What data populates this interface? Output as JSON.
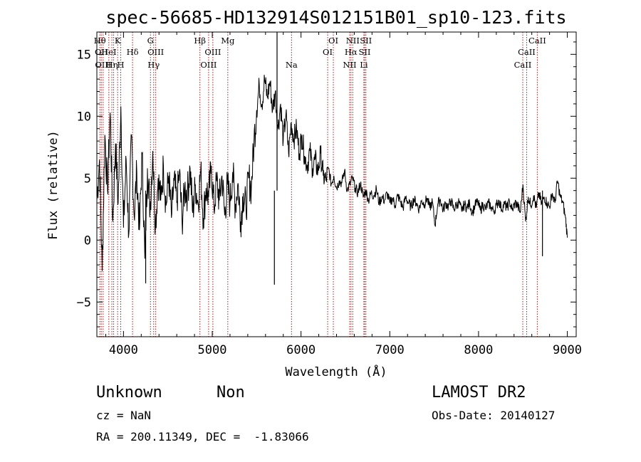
{
  "chart_data": {
    "type": "line",
    "title": "spec-56685-HD132914S012151B01_sp10-123.fits",
    "xlabel": "Wavelength (Å)",
    "ylabel": "Flux (relative)",
    "xlim": [
      3700,
      9100
    ],
    "ylim": [
      -7.8,
      16.8
    ],
    "xticks": [
      4000,
      5000,
      6000,
      7000,
      8000,
      9000
    ],
    "yticks": [
      -5,
      0,
      5,
      10,
      15
    ],
    "grid": false,
    "series": [
      {
        "x": [
          3700,
          3730,
          3760,
          3790,
          3820,
          3850,
          3880,
          3910,
          3940,
          3970,
          4000,
          4030,
          4060,
          4090,
          4120,
          4150,
          4180,
          4210,
          4240,
          4270,
          4300,
          4330,
          4360,
          4390,
          4420,
          4450,
          4480,
          4510,
          4540,
          4570,
          4600,
          4630,
          4660,
          4690,
          4720,
          4750,
          4780,
          4810,
          4840,
          4870,
          4900,
          4930,
          4960,
          4990,
          5020,
          5050,
          5080,
          5110,
          5140,
          5170,
          5200,
          5230,
          5260,
          5290,
          5320,
          5350,
          5380,
          5410,
          5440,
          5470,
          5500,
          5530,
          5560,
          5590,
          5620,
          5650,
          5680,
          5710,
          5740,
          5770,
          5800,
          5830,
          5860,
          5890,
          5920,
          5950,
          5980,
          6010,
          6040,
          6070,
          6100,
          6130,
          6160,
          6190,
          6220,
          6250,
          6280,
          6310,
          6340,
          6370,
          6400,
          6430,
          6460,
          6490,
          6520,
          6550,
          6580,
          6610,
          6640,
          6670,
          6700,
          6730,
          6760,
          6790,
          6820,
          6850,
          6880,
          6910,
          6940,
          6970,
          7000,
          7030,
          7060,
          7090,
          7120,
          7150,
          7180,
          7210,
          7240,
          7270,
          7300,
          7330,
          7360,
          7390,
          7420,
          7450,
          7480,
          7510,
          7540,
          7570,
          7600,
          7630,
          7660,
          7690,
          7720,
          7750,
          7780,
          7810,
          7840,
          7870,
          7900,
          7930,
          7960,
          7990,
          8020,
          8050,
          8080,
          8110,
          8140,
          8170,
          8200,
          8230,
          8260,
          8290,
          8320,
          8350,
          8380,
          8410,
          8440,
          8470,
          8500,
          8530,
          8560,
          8590,
          8620,
          8650,
          8680,
          8710,
          8740,
          8770,
          8800,
          8830,
          8860,
          8890,
          8920,
          8950,
          8980,
          9000
        ],
        "y": [
          3.2,
          6.5,
          -2.5,
          8.5,
          4.0,
          10.3,
          1.5,
          7.8,
          3.0,
          10.8,
          1.0,
          6.5,
          0.5,
          8.5,
          2.0,
          5.5,
          0.8,
          7.0,
          -1.5,
          5.8,
          2.5,
          7.2,
          1.2,
          5.0,
          3.2,
          6.0,
          2.8,
          5.2,
          1.8,
          4.8,
          3.0,
          5.5,
          1.5,
          4.2,
          3.8,
          5.8,
          2.2,
          4.5,
          3.0,
          5.6,
          1.8,
          4.2,
          3.5,
          6.0,
          2.5,
          4.8,
          3.2,
          5.2,
          2.0,
          4.5,
          3.0,
          5.5,
          2.8,
          4.6,
          1.5,
          3.8,
          2.5,
          5.0,
          4.2,
          8.0,
          10.5,
          12.5,
          11.0,
          13.0,
          11.5,
          12.8,
          10.5,
          12.0,
          9.0,
          11.0,
          8.0,
          10.2,
          7.0,
          9.5,
          8.2,
          9.0,
          7.0,
          8.5,
          6.8,
          6.0,
          7.2,
          5.8,
          6.5,
          5.5,
          7.0,
          5.2,
          4.8,
          5.8,
          4.5,
          5.2,
          4.2,
          4.8,
          4.6,
          5.6,
          4.0,
          4.5,
          5.0,
          4.2,
          3.8,
          4.6,
          3.5,
          4.0,
          3.2,
          3.8,
          3.6,
          4.1,
          3.0,
          3.5,
          3.2,
          3.8,
          3.0,
          3.4,
          2.8,
          3.6,
          3.1,
          2.6,
          3.5,
          3.0,
          2.7,
          3.3,
          3.0,
          2.5,
          3.2,
          2.9,
          3.4,
          2.6,
          3.1,
          1.2,
          2.9,
          3.3,
          2.4,
          3.0,
          2.7,
          3.2,
          2.5,
          2.8,
          3.1,
          2.3,
          2.9,
          2.6,
          3.0,
          2.2,
          2.8,
          3.1,
          2.4,
          2.9,
          2.5,
          3.0,
          2.7,
          2.3,
          2.8,
          3.2,
          2.5,
          2.9,
          2.6,
          3.1,
          2.4,
          3.0,
          2.8,
          2.2,
          4.5,
          1.5,
          3.5,
          2.8,
          3.6,
          2.6,
          3.8,
          2.9,
          3.5,
          3.0,
          2.7,
          3.8,
          3.0,
          4.8,
          3.5,
          3.0,
          1.8,
          0.2
        ]
      }
    ],
    "absorption_spikes": [
      {
        "x": 4250,
        "y": -3.5
      },
      {
        "x": 5700,
        "y": -3.6
      },
      {
        "x": 5730,
        "y": 16.8
      },
      {
        "x": 8720,
        "y": -1.3
      }
    ],
    "spectral_lines": [
      {
        "x": 3734,
        "label": "Hθ",
        "row": 0
      },
      {
        "x": 3750,
        "label": "OII",
        "row": 1
      },
      {
        "x": 3771,
        "label": "OIII",
        "row": 2
      },
      {
        "x": 3835,
        "label": "HeI",
        "row": 1
      },
      {
        "x": 3869,
        "label": "Hη",
        "row": 2
      },
      {
        "x": 3889,
        "label": "",
        "row": 0
      },
      {
        "x": 3934,
        "label": "K",
        "row": 0
      },
      {
        "x": 3969,
        "label": "H",
        "row": 2
      },
      {
        "x": 4102,
        "label": "Hδ",
        "row": 1
      },
      {
        "x": 4304,
        "label": "G",
        "row": 0
      },
      {
        "x": 4340,
        "label": "Hγ",
        "row": 2
      },
      {
        "x": 4363,
        "label": "OIII",
        "row": 1
      },
      {
        "x": 4861,
        "label": "Hβ",
        "row": 0
      },
      {
        "x": 4959,
        "label": "OIII",
        "row": 2
      },
      {
        "x": 5007,
        "label": "OIII",
        "row": 1
      },
      {
        "x": 5175,
        "label": "Mg",
        "row": 0
      },
      {
        "x": 5893,
        "label": "Na",
        "row": 2
      },
      {
        "x": 6300,
        "label": "OI",
        "row": 1
      },
      {
        "x": 6364,
        "label": "OI",
        "row": 0
      },
      {
        "x": 6548,
        "label": "NII",
        "row": 2
      },
      {
        "x": 6563,
        "label": "Hα",
        "row": 1
      },
      {
        "x": 6583,
        "label": "NII",
        "row": 0
      },
      {
        "x": 6708,
        "label": "Li",
        "row": 2
      },
      {
        "x": 6717,
        "label": "SII",
        "row": 1
      },
      {
        "x": 6731,
        "label": "SII",
        "row": 0
      },
      {
        "x": 8498,
        "label": "CaII",
        "row": 2
      },
      {
        "x": 8542,
        "label": "CaII",
        "row": 1
      },
      {
        "x": 8662,
        "label": "CaII",
        "row": 0
      }
    ],
    "colors": {
      "spectrum": "#000000",
      "line_marker": "#b01818",
      "axes": "#000000"
    }
  },
  "footer": {
    "object_class": "Unknown",
    "subclass": "Non",
    "survey": "LAMOST DR2",
    "cz": "cz = NaN",
    "obs_date": "Obs-Date: 20140127",
    "coords": "RA = 200.11349, DEC =  -1.83066"
  }
}
